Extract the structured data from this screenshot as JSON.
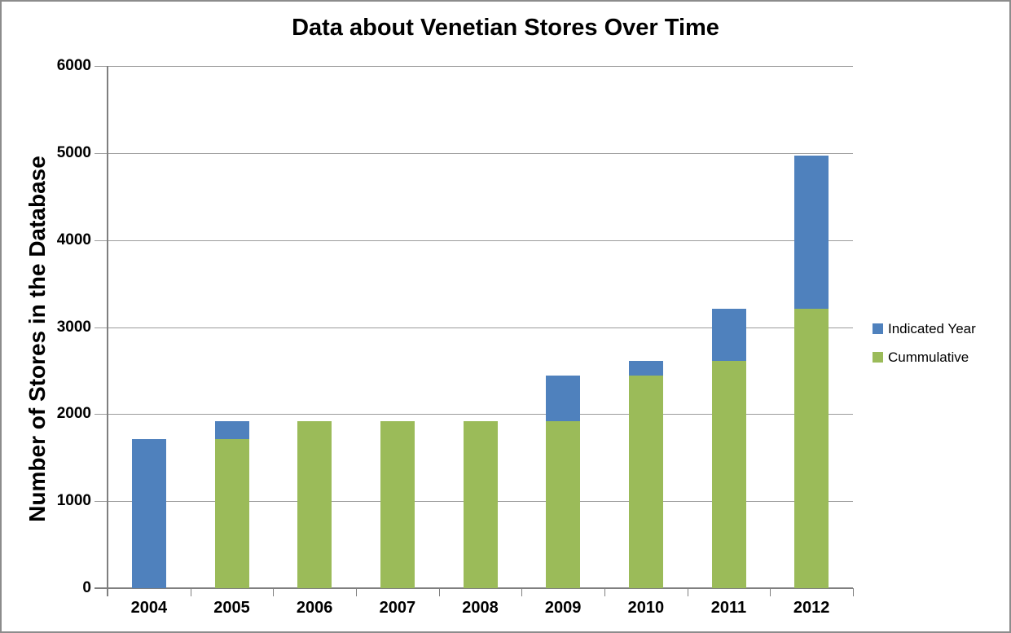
{
  "chart_data": {
    "type": "bar",
    "stacked": true,
    "title": "Data about Venetian Stores Over Time",
    "ylabel": "Number of Stores in the Database",
    "xlabel": "",
    "categories": [
      "2004",
      "2005",
      "2006",
      "2007",
      "2008",
      "2009",
      "2010",
      "2011",
      "2012"
    ],
    "series": [
      {
        "name": "Cummulative",
        "color": "#9BBB59",
        "values": [
          0,
          1710,
          1920,
          1920,
          1920,
          1920,
          2445,
          2615,
          3215
        ]
      },
      {
        "name": "Indicated Year",
        "color": "#4F81BD",
        "values": [
          1710,
          210,
          0,
          0,
          0,
          525,
          170,
          600,
          1755
        ]
      }
    ],
    "stack_order_bottom_to_top": [
      "Cummulative",
      "Indicated Year"
    ],
    "totals": [
      1710,
      1920,
      1920,
      1920,
      1920,
      2445,
      2615,
      3215,
      4970
    ],
    "ylim": [
      0,
      6000
    ],
    "yticks": [
      0,
      1000,
      2000,
      3000,
      4000,
      5000,
      6000
    ],
    "grid": true,
    "legend_position": "right",
    "legend": [
      "Indicated Year",
      "Cummulative"
    ]
  },
  "colors": {
    "blue_series": "#4F81BD",
    "green_series": "#9BBB59",
    "gridline": "#9C9C9C",
    "axis": "#7F7F7F",
    "window_border": "#8C8C8C",
    "text": "#000000"
  }
}
